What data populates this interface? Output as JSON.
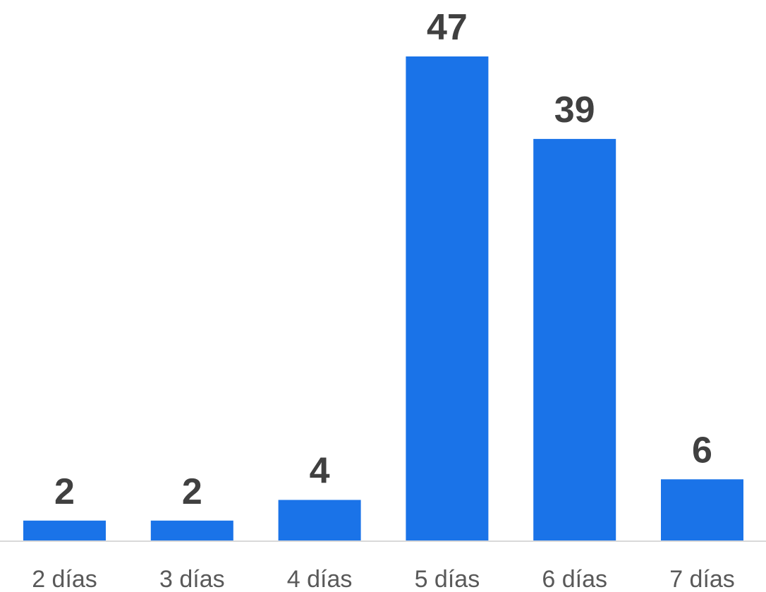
{
  "colors": {
    "bar": "#1a73e8",
    "value_label": "#404040",
    "category_label": "#595959",
    "baseline": "#d9d9d9"
  },
  "chart_data": {
    "type": "bar",
    "categories": [
      "2 días",
      "3 días",
      "4 días",
      "5 días",
      "6 días",
      "7 días"
    ],
    "values": [
      2,
      2,
      4,
      47,
      39,
      6
    ],
    "data_labels": [
      "2",
      "2",
      "4",
      "47",
      "39",
      "6"
    ],
    "title": "",
    "xlabel": "",
    "ylabel": "",
    "ylim": [
      0,
      47
    ],
    "grid": false,
    "legend": "none",
    "y_axis_visible": false
  }
}
